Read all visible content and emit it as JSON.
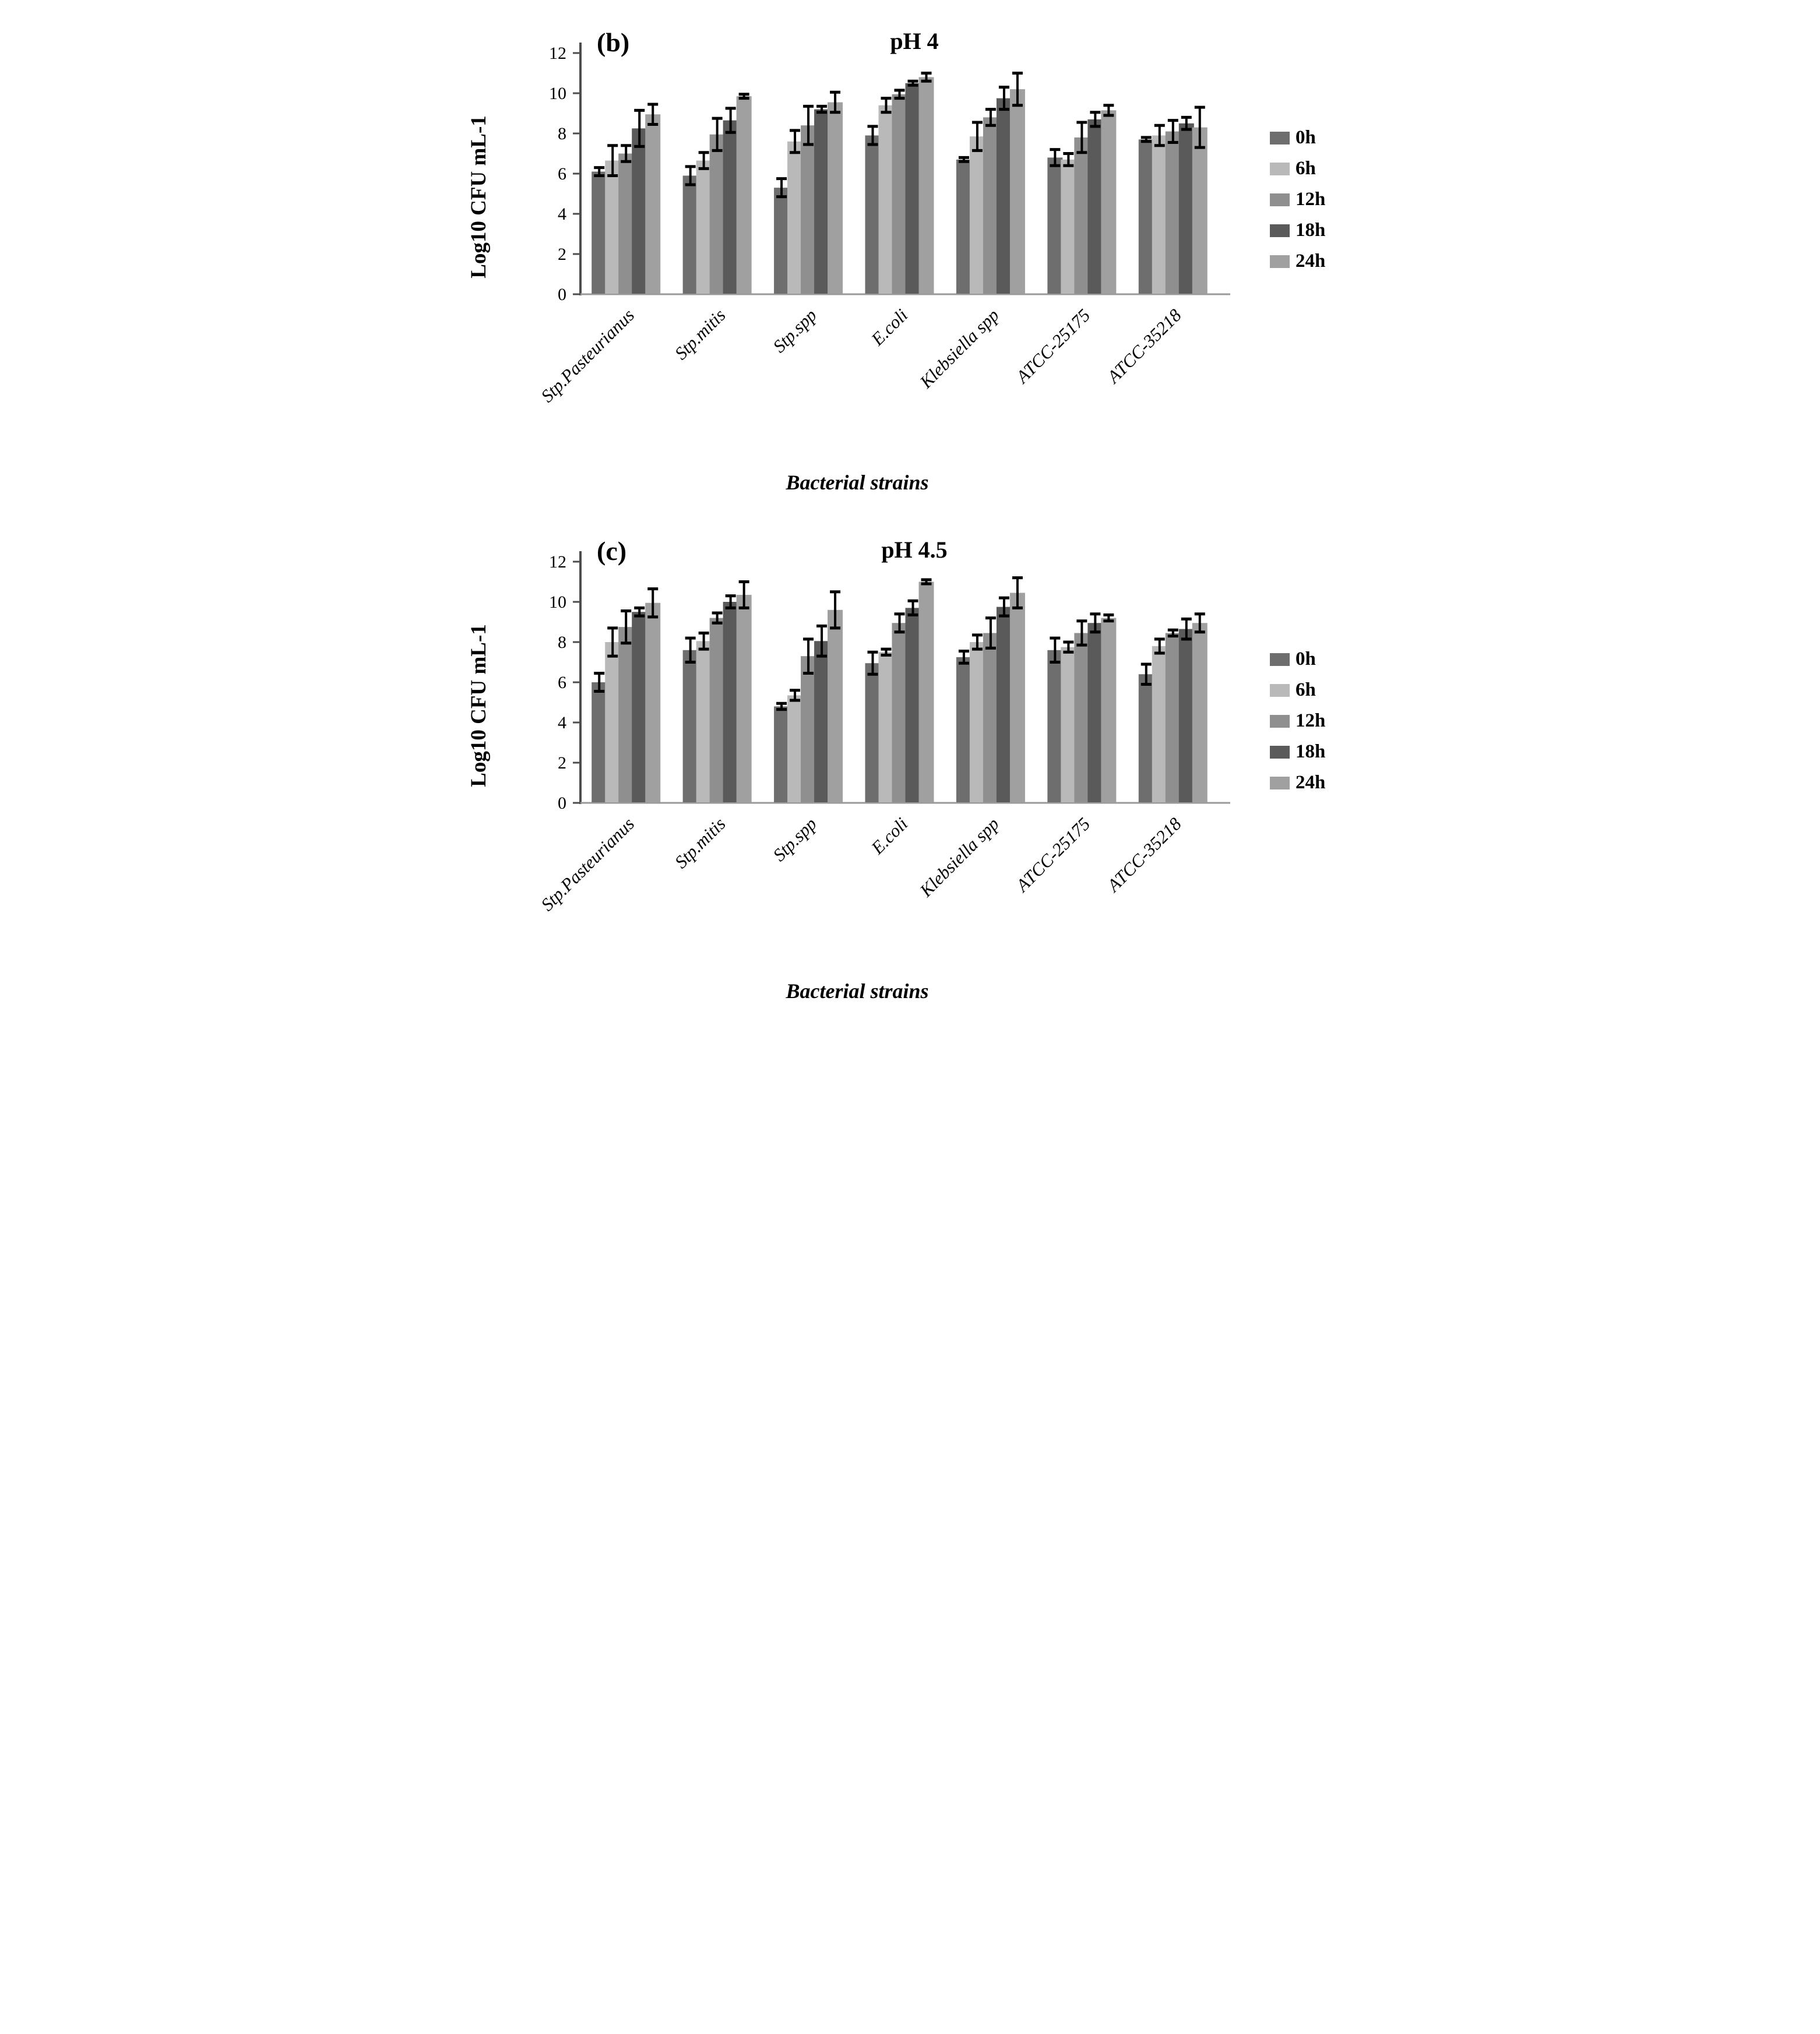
{
  "figure": {
    "panel_count": 2,
    "background_color": "#ffffff",
    "text_color": "#000000"
  },
  "chart_data": [
    {
      "type": "bar",
      "panel_label": "(b)",
      "title": "pH  4",
      "xlabel": "Bacterial strains",
      "ylabel": "Log10 CFU mL-1",
      "ylim": [
        0,
        12
      ],
      "yticks": [
        0,
        2,
        4,
        6,
        8,
        10,
        12
      ],
      "grid": "off",
      "legend_position": "right",
      "error_bars": true,
      "categories": [
        "Stp.Pasteurianus",
        "Stp.mitis",
        "Stp.spp",
        "E.coli",
        "Klebsiella spp",
        "ATCC-25175",
        "ATCC-35218"
      ],
      "series": [
        {
          "name": "0h",
          "color": "#6e6e6e",
          "values": [
            6.1,
            5.9,
            5.3,
            7.9,
            6.7,
            6.8,
            7.7
          ],
          "errors": [
            0.2,
            0.45,
            0.45,
            0.45,
            0.1,
            0.4,
            0.1
          ]
        },
        {
          "name": "6h",
          "color": "#b9b9b9",
          "values": [
            6.65,
            6.65,
            7.6,
            9.4,
            7.85,
            6.7,
            7.9
          ],
          "errors": [
            0.75,
            0.4,
            0.55,
            0.35,
            0.7,
            0.3,
            0.5
          ]
        },
        {
          "name": "12h",
          "color": "#8f8f8f",
          "values": [
            7.0,
            7.95,
            8.4,
            9.95,
            8.8,
            7.8,
            8.1
          ],
          "errors": [
            0.4,
            0.8,
            0.95,
            0.2,
            0.4,
            0.75,
            0.55
          ]
        },
        {
          "name": "18h",
          "color": "#5a5a5a",
          "values": [
            8.25,
            8.65,
            9.2,
            10.5,
            9.75,
            8.7,
            8.5
          ],
          "errors": [
            0.9,
            0.6,
            0.15,
            0.1,
            0.55,
            0.35,
            0.3
          ]
        },
        {
          "name": "24h",
          "color": "#a0a0a0",
          "values": [
            8.95,
            9.85,
            9.55,
            10.8,
            10.2,
            9.15,
            8.3
          ],
          "errors": [
            0.5,
            0.1,
            0.5,
            0.2,
            0.8,
            0.25,
            1.0
          ]
        }
      ]
    },
    {
      "type": "bar",
      "panel_label": "(c)",
      "title": "pH  4.5",
      "xlabel": "Bacterial strains",
      "ylabel": "Log10 CFU mL-1",
      "ylim": [
        0,
        12
      ],
      "yticks": [
        0,
        2,
        4,
        6,
        8,
        10,
        12
      ],
      "grid": "off",
      "legend_position": "right",
      "error_bars": true,
      "categories": [
        "Stp.Pasteurianus",
        "Stp.mitis",
        "Stp.spp",
        "E.coli",
        "Klebsiella spp",
        "ATCC-25175",
        "ATCC-35218"
      ],
      "series": [
        {
          "name": "0h",
          "color": "#6e6e6e",
          "values": [
            6.0,
            7.6,
            4.8,
            6.95,
            7.25,
            7.6,
            6.4
          ],
          "errors": [
            0.45,
            0.6,
            0.15,
            0.55,
            0.3,
            0.6,
            0.5
          ]
        },
        {
          "name": "6h",
          "color": "#b9b9b9",
          "values": [
            8.0,
            8.05,
            5.35,
            7.5,
            8.0,
            7.75,
            7.8
          ],
          "errors": [
            0.7,
            0.4,
            0.25,
            0.15,
            0.35,
            0.25,
            0.35
          ]
        },
        {
          "name": "12h",
          "color": "#8f8f8f",
          "values": [
            8.75,
            9.2,
            7.3,
            8.95,
            8.45,
            8.45,
            8.45
          ],
          "errors": [
            0.8,
            0.25,
            0.85,
            0.45,
            0.75,
            0.6,
            0.15
          ]
        },
        {
          "name": "18h",
          "color": "#5a5a5a",
          "values": [
            9.5,
            10.0,
            8.05,
            9.7,
            9.75,
            8.95,
            8.65
          ],
          "errors": [
            0.2,
            0.3,
            0.75,
            0.35,
            0.45,
            0.45,
            0.5
          ]
        },
        {
          "name": "24h",
          "color": "#a0a0a0",
          "values": [
            9.95,
            10.35,
            9.6,
            11.0,
            10.45,
            9.2,
            8.95
          ],
          "errors": [
            0.7,
            0.65,
            0.9,
            0.1,
            0.75,
            0.15,
            0.45
          ]
        }
      ]
    }
  ],
  "legend": {
    "entries": [
      "0h",
      "6h",
      "12h",
      "18h",
      "24h"
    ]
  }
}
